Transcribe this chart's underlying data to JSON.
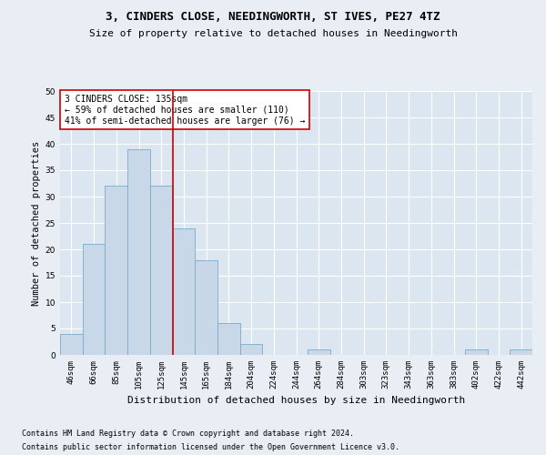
{
  "title1": "3, CINDERS CLOSE, NEEDINGWORTH, ST IVES, PE27 4TZ",
  "title2": "Size of property relative to detached houses in Needingworth",
  "xlabel": "Distribution of detached houses by size in Needingworth",
  "ylabel": "Number of detached properties",
  "footnote1": "Contains HM Land Registry data © Crown copyright and database right 2024.",
  "footnote2": "Contains public sector information licensed under the Open Government Licence v3.0.",
  "categories": [
    "46sqm",
    "66sqm",
    "85sqm",
    "105sqm",
    "125sqm",
    "145sqm",
    "165sqm",
    "184sqm",
    "204sqm",
    "224sqm",
    "244sqm",
    "264sqm",
    "284sqm",
    "303sqm",
    "323sqm",
    "343sqm",
    "363sqm",
    "383sqm",
    "402sqm",
    "422sqm",
    "442sqm"
  ],
  "values": [
    4,
    21,
    32,
    39,
    32,
    24,
    18,
    6,
    2,
    0,
    0,
    1,
    0,
    0,
    0,
    0,
    0,
    0,
    1,
    0,
    1
  ],
  "bar_color": "#c8d8e8",
  "bar_edge_color": "#7aaac8",
  "vline_x": 4,
  "vline_color": "#cc0000",
  "annotation_text": "3 CINDERS CLOSE: 135sqm\n← 59% of detached houses are smaller (110)\n41% of semi-detached houses are larger (76) →",
  "annotation_box_color": "#ffffff",
  "annotation_box_edgecolor": "#cc0000",
  "ylim": [
    0,
    50
  ],
  "yticks": [
    0,
    5,
    10,
    15,
    20,
    25,
    30,
    35,
    40,
    45,
    50
  ],
  "bg_color": "#e8eef4",
  "plot_bg_color": "#dce6f0",
  "grid_color": "#ffffff",
  "title1_fontsize": 9,
  "title2_fontsize": 8,
  "xlabel_fontsize": 8,
  "ylabel_fontsize": 7.5,
  "annotation_fontsize": 7,
  "footnote_fontsize": 6,
  "tick_fontsize": 6.5
}
